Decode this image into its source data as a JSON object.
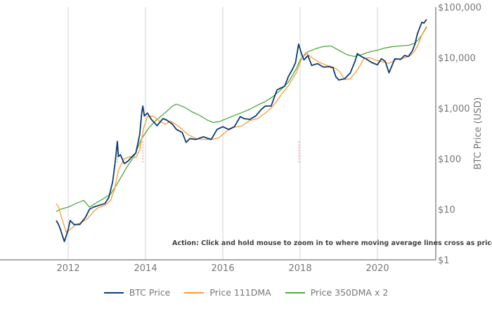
{
  "chart_data": {
    "type": "line",
    "title": "",
    "ylabel": "BTC Price (USD)",
    "yscale": "log",
    "ylim": [
      1,
      100000
    ],
    "xlim": [
      2011.69,
      2021.5
    ],
    "yticks": [
      {
        "v": 1,
        "label": "$1"
      },
      {
        "v": 10,
        "label": "$10"
      },
      {
        "v": 100,
        "label": "$100"
      },
      {
        "v": 1000,
        "label": "$1,000"
      },
      {
        "v": 10000,
        "label": "$10,000"
      },
      {
        "v": 100000,
        "label": "$100,000"
      }
    ],
    "xticks": [
      {
        "v": 2012,
        "label": "2012"
      },
      {
        "v": 2014,
        "label": "2014"
      },
      {
        "v": 2016,
        "label": "2016"
      },
      {
        "v": 2018,
        "label": "2018"
      },
      {
        "v": 2020,
        "label": "2020"
      }
    ],
    "grid": "vertical",
    "legend_position": "bottom",
    "annotation": "Action: Click and hold mouse to zoom in to where moving average lines cross as price pea",
    "crossings": [
      2013.28,
      2013.93,
      2017.97
    ],
    "series": [
      {
        "name": "BTC Price",
        "color": "#0b3b73",
        "x": [
          2011.69,
          2011.75,
          2011.8,
          2011.85,
          2011.9,
          2011.95,
          2012.0,
          2012.05,
          2012.15,
          2012.3,
          2012.45,
          2012.55,
          2012.65,
          2012.8,
          2012.95,
          2013.05,
          2013.15,
          2013.22,
          2013.27,
          2013.3,
          2013.35,
          2013.45,
          2013.55,
          2013.65,
          2013.75,
          2013.85,
          2013.9,
          2013.93,
          2013.97,
          2014.05,
          2014.15,
          2014.3,
          2014.45,
          2014.55,
          2014.7,
          2014.8,
          2014.95,
          2015.05,
          2015.15,
          2015.3,
          2015.5,
          2015.7,
          2015.85,
          2016.0,
          2016.15,
          2016.3,
          2016.45,
          2016.55,
          2016.7,
          2016.85,
          2017.0,
          2017.1,
          2017.25,
          2017.4,
          2017.5,
          2017.6,
          2017.7,
          2017.8,
          2017.88,
          2017.96,
          2018.05,
          2018.1,
          2018.2,
          2018.3,
          2018.45,
          2018.6,
          2018.75,
          2018.85,
          2018.92,
          2019.0,
          2019.15,
          2019.3,
          2019.42,
          2019.48,
          2019.58,
          2019.7,
          2019.85,
          2020.0,
          2020.1,
          2020.2,
          2020.3,
          2020.45,
          2020.6,
          2020.7,
          2020.8,
          2020.9,
          2020.97,
          2021.03,
          2021.1,
          2021.15,
          2021.2,
          2021.27
        ],
        "y": [
          6,
          5,
          4,
          3,
          2.3,
          3,
          4,
          6,
          5,
          5,
          7,
          10,
          11,
          12,
          13,
          17,
          35,
          90,
          220,
          110,
          120,
          80,
          90,
          110,
          130,
          300,
          800,
          1100,
          700,
          800,
          600,
          450,
          620,
          580,
          480,
          380,
          330,
          210,
          250,
          240,
          270,
          240,
          380,
          430,
          380,
          430,
          680,
          620,
          600,
          700,
          950,
          1100,
          1100,
          2300,
          2500,
          2700,
          4300,
          5800,
          8000,
          18500,
          11000,
          9000,
          11000,
          7000,
          7600,
          6500,
          6600,
          6300,
          4200,
          3600,
          3800,
          5000,
          8500,
          12000,
          10500,
          9500,
          8000,
          7200,
          9500,
          8500,
          5000,
          9500,
          9200,
          11000,
          10500,
          13500,
          18500,
          29000,
          40000,
          50000,
          48000,
          57000
        ]
      },
      {
        "name": "Price 111DMA",
        "color": "#ff9933",
        "x": [
          2011.69,
          2011.75,
          2011.85,
          2011.95,
          2012.05,
          2012.2,
          2012.35,
          2012.5,
          2012.65,
          2012.8,
          2012.95,
          2013.1,
          2013.2,
          2013.3,
          2013.45,
          2013.6,
          2013.75,
          2013.85,
          2013.95,
          2014.05,
          2014.2,
          2014.35,
          2014.5,
          2014.65,
          2014.8,
          2014.95,
          2015.1,
          2015.3,
          2015.5,
          2015.7,
          2015.9,
          2016.1,
          2016.3,
          2016.5,
          2016.7,
          2016.9,
          2017.1,
          2017.3,
          2017.5,
          2017.7,
          2017.9,
          2018.05,
          2018.15,
          2018.3,
          2018.5,
          2018.7,
          2018.85,
          2019.0,
          2019.15,
          2019.3,
          2019.5,
          2019.65,
          2019.8,
          2019.95,
          2020.1,
          2020.3,
          2020.5,
          2020.7,
          2020.85,
          2020.95,
          2021.05,
          2021.15,
          2021.27
        ],
        "y": [
          13,
          11,
          6,
          3.5,
          4,
          5,
          5.5,
          6.5,
          9,
          11,
          12,
          15,
          25,
          60,
          100,
          110,
          105,
          150,
          400,
          680,
          700,
          560,
          480,
          550,
          470,
          380,
          300,
          250,
          240,
          240,
          260,
          350,
          420,
          450,
          570,
          620,
          800,
          1100,
          1800,
          2800,
          5000,
          10000,
          12500,
          10000,
          8000,
          7000,
          6500,
          5500,
          3700,
          3800,
          6000,
          9500,
          10000,
          9000,
          8300,
          7700,
          9300,
          9800,
          11000,
          13000,
          18000,
          28000,
          42000
        ]
      },
      {
        "name": "Price 350DMA x 2",
        "color": "#4caa3c",
        "x": [
          2011.69,
          2011.8,
          2012.0,
          2012.2,
          2012.4,
          2012.55,
          2012.7,
          2012.9,
          2013.1,
          2013.3,
          2013.5,
          2013.7,
          2013.9,
          2014.1,
          2014.3,
          2014.5,
          2014.7,
          2014.8,
          2015.0,
          2015.2,
          2015.4,
          2015.6,
          2015.75,
          2015.9,
          2016.1,
          2016.3,
          2016.5,
          2016.7,
          2016.9,
          2017.1,
          2017.3,
          2017.5,
          2017.7,
          2017.9,
          2018.0,
          2018.2,
          2018.4,
          2018.6,
          2018.8,
          2019.0,
          2019.2,
          2019.4,
          2019.6,
          2019.8,
          2020.0,
          2020.2,
          2020.4,
          2020.6,
          2020.8,
          2020.95,
          2021.05,
          2021.15,
          2021.27
        ],
        "y": [
          9,
          10,
          11,
          13,
          15,
          11,
          13,
          16,
          20,
          35,
          65,
          110,
          250,
          420,
          600,
          800,
          1100,
          1200,
          1050,
          850,
          720,
          580,
          520,
          540,
          620,
          720,
          820,
          950,
          1150,
          1350,
          1700,
          2300,
          3300,
          6000,
          9000,
          13000,
          15000,
          16500,
          17000,
          14000,
          11500,
          10500,
          11500,
          13000,
          14000,
          15500,
          16500,
          17000,
          17500,
          19000,
          22000,
          28000,
          40000
        ]
      }
    ]
  }
}
